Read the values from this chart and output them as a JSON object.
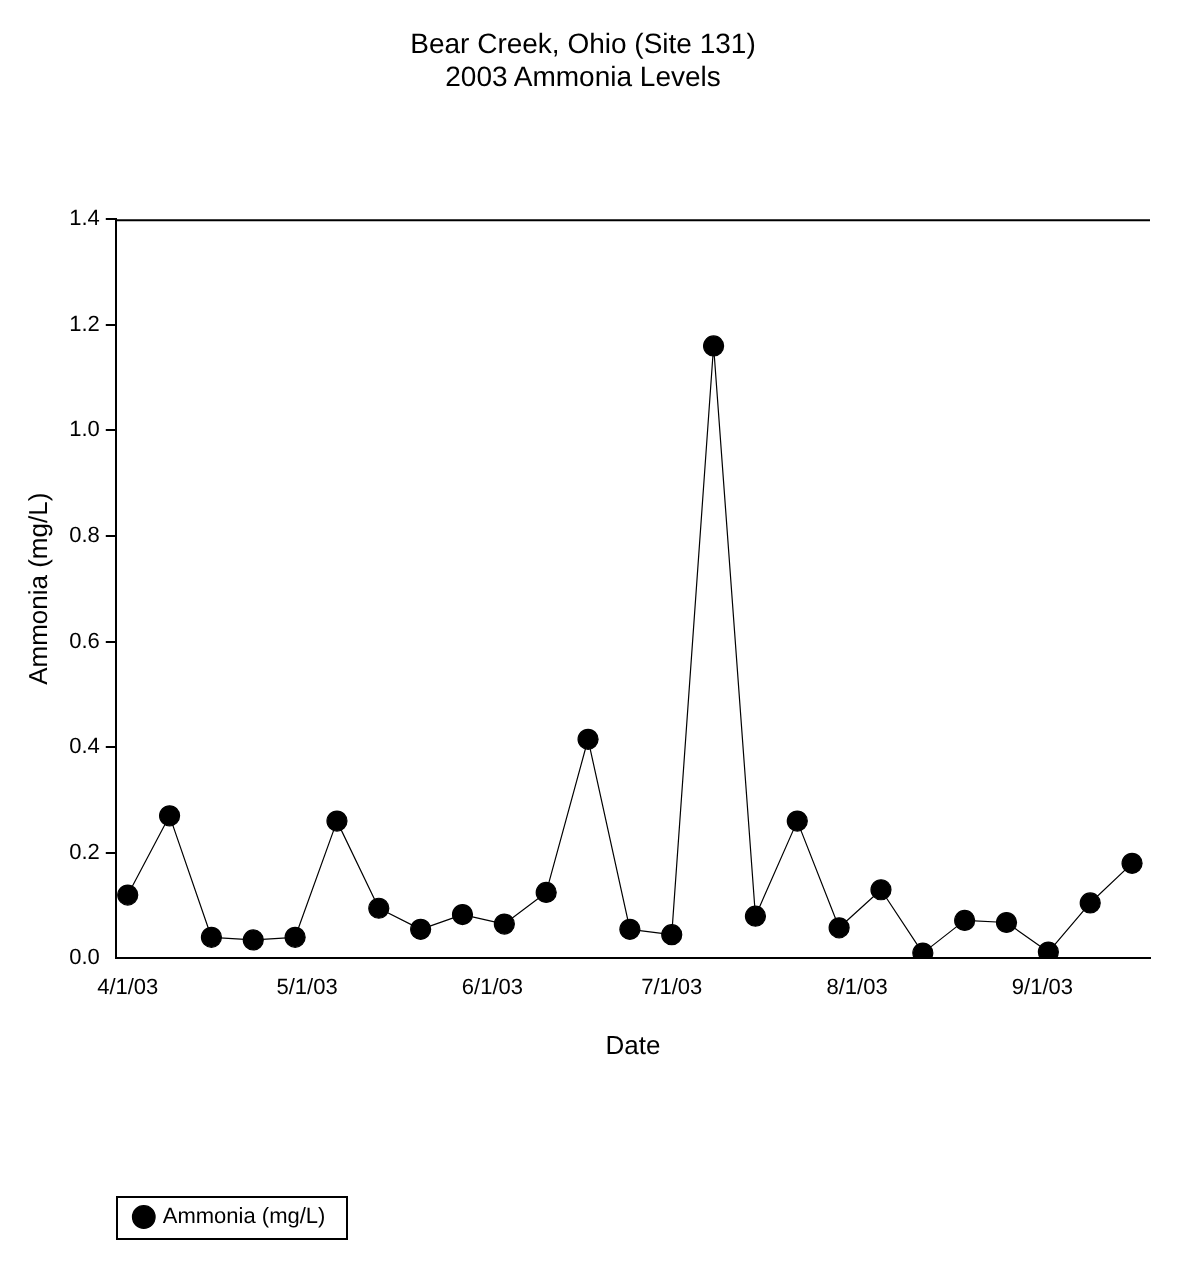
{
  "chart_data": {
    "type": "line",
    "title": "Bear Creek, Ohio (Site 131)",
    "subtitle": "2003 Ammonia Levels",
    "xlabel": "Date",
    "ylabel": "Ammonia (mg/L)",
    "xlim": [
      "2003-03-30",
      "2003-09-19"
    ],
    "xticks": [
      {
        "value": "2003-04-01",
        "label": "4/1/03"
      },
      {
        "value": "2003-05-01",
        "label": "5/1/03"
      },
      {
        "value": "2003-06-01",
        "label": "6/1/03"
      },
      {
        "value": "2003-07-01",
        "label": "7/1/03"
      },
      {
        "value": "2003-08-01",
        "label": "8/1/03"
      },
      {
        "value": "2003-09-01",
        "label": "9/1/03"
      }
    ],
    "ylim": [
      0,
      1.4
    ],
    "yticks": [
      {
        "value": 0,
        "label": "0.0"
      },
      0.2,
      0.4,
      0.6,
      0.8,
      {
        "value": 1,
        "label": "1.0"
      },
      1.2,
      1.4
    ],
    "x": [
      "2003-04-01",
      "2003-04-08",
      "2003-04-15",
      "2003-04-22",
      "2003-04-29",
      "2003-05-06",
      "2003-05-13",
      "2003-05-20",
      "2003-05-27",
      "2003-06-03",
      "2003-06-10",
      "2003-06-17",
      "2003-06-24",
      "2003-07-01",
      "2003-07-08",
      "2003-07-15",
      "2003-07-22",
      "2003-07-29",
      "2003-08-05",
      "2003-08-12",
      "2003-08-19",
      "2003-08-26",
      "2003-09-02",
      "2003-09-09",
      "2003-09-16"
    ],
    "series": [
      {
        "name": "Ammonia (mg/L)",
        "color": "#000000",
        "values": [
          0.12,
          0.27,
          0.04,
          0.035,
          0.04,
          0.26,
          0.095,
          0.055,
          0.083,
          0.065,
          0.125,
          0.415,
          0.055,
          0.045,
          1.16,
          0.08,
          0.26,
          0.058,
          0.13,
          0.01,
          0.072,
          0.068,
          0.012,
          0.105,
          0.18
        ]
      }
    ],
    "marker": "circle",
    "line_style": "solid",
    "grid": false,
    "legend": "bottom left"
  }
}
